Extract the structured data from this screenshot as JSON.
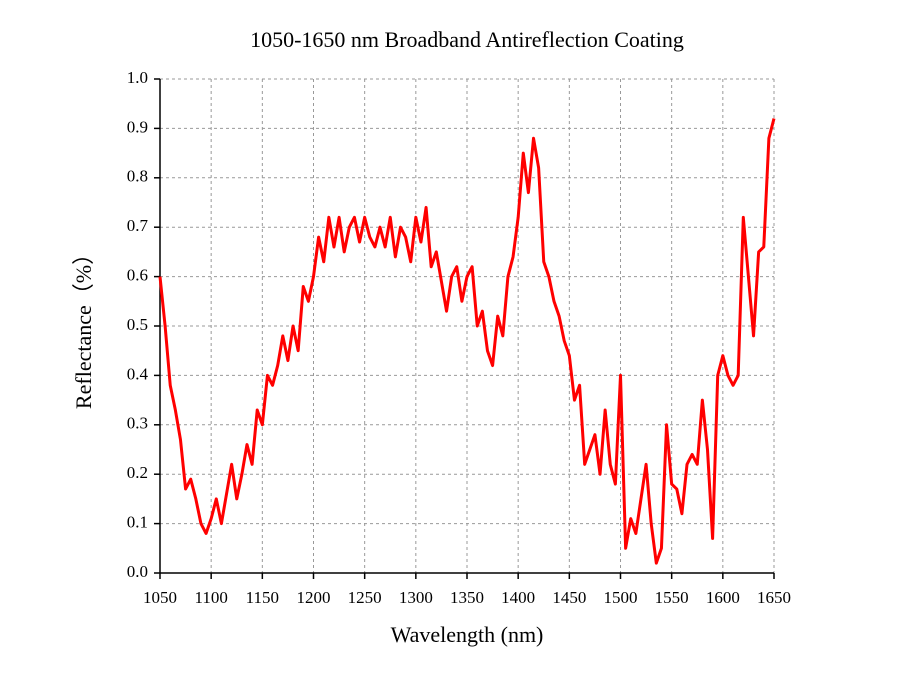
{
  "chart_data": {
    "type": "line",
    "title": "1050-1650 nm Broadband Antireflection Coating",
    "x_label": "Wavelength (nm)",
    "y_label": "Reflectance（%）",
    "xlim": [
      1050,
      1650
    ],
    "xticks": [
      1050,
      1100,
      1150,
      1200,
      1250,
      1300,
      1350,
      1400,
      1450,
      1500,
      1550,
      1600,
      1650
    ],
    "ylim": [
      0,
      1
    ],
    "yticks": [
      {
        "value": 0,
        "label": "0.0"
      },
      0.1,
      0.2,
      0.3,
      0.4,
      0.5,
      0.6,
      0.7,
      0.8,
      0.9,
      {
        "value": 1,
        "label": "1.0"
      }
    ],
    "grid": true,
    "x": [
      1050,
      1055,
      1060,
      1065,
      1070,
      1075,
      1080,
      1085,
      1090,
      1095,
      1100,
      1105,
      1110,
      1115,
      1120,
      1125,
      1130,
      1135,
      1140,
      1145,
      1150,
      1155,
      1160,
      1165,
      1170,
      1175,
      1180,
      1185,
      1190,
      1195,
      1200,
      1205,
      1210,
      1215,
      1220,
      1225,
      1230,
      1235,
      1240,
      1245,
      1250,
      1255,
      1260,
      1265,
      1270,
      1275,
      1280,
      1285,
      1290,
      1295,
      1300,
      1305,
      1310,
      1315,
      1320,
      1325,
      1330,
      1335,
      1340,
      1345,
      1350,
      1355,
      1360,
      1365,
      1370,
      1375,
      1380,
      1385,
      1390,
      1395,
      1400,
      1405,
      1410,
      1415,
      1420,
      1425,
      1430,
      1435,
      1440,
      1445,
      1450,
      1455,
      1460,
      1465,
      1470,
      1475,
      1480,
      1485,
      1490,
      1495,
      1500,
      1505,
      1510,
      1515,
      1520,
      1525,
      1530,
      1535,
      1540,
      1545,
      1550,
      1555,
      1560,
      1565,
      1570,
      1575,
      1580,
      1585,
      1590,
      1595,
      1600,
      1605,
      1610,
      1615,
      1620,
      1625,
      1630,
      1635,
      1640,
      1645,
      1650
    ],
    "series": [
      {
        "color": "#ff0000",
        "values": [
          0.6,
          0.5,
          0.38,
          0.33,
          0.27,
          0.17,
          0.19,
          0.15,
          0.1,
          0.08,
          0.11,
          0.15,
          0.1,
          0.16,
          0.22,
          0.15,
          0.2,
          0.26,
          0.22,
          0.33,
          0.3,
          0.4,
          0.38,
          0.42,
          0.48,
          0.43,
          0.5,
          0.45,
          0.58,
          0.55,
          0.6,
          0.68,
          0.63,
          0.72,
          0.66,
          0.72,
          0.65,
          0.7,
          0.72,
          0.67,
          0.72,
          0.68,
          0.66,
          0.7,
          0.66,
          0.72,
          0.64,
          0.7,
          0.68,
          0.63,
          0.72,
          0.67,
          0.74,
          0.62,
          0.65,
          0.59,
          0.53,
          0.6,
          0.62,
          0.55,
          0.6,
          0.62,
          0.5,
          0.53,
          0.45,
          0.42,
          0.52,
          0.48,
          0.6,
          0.64,
          0.72,
          0.85,
          0.77,
          0.88,
          0.82,
          0.63,
          0.6,
          0.55,
          0.52,
          0.47,
          0.44,
          0.35,
          0.38,
          0.22,
          0.25,
          0.28,
          0.2,
          0.33,
          0.22,
          0.18,
          0.4,
          0.05,
          0.11,
          0.08,
          0.15,
          0.22,
          0.1,
          0.02,
          0.05,
          0.3,
          0.18,
          0.17,
          0.12,
          0.22,
          0.24,
          0.22,
          0.35,
          0.25,
          0.07,
          0.4,
          0.44,
          0.4,
          0.38,
          0.4,
          0.72,
          0.6,
          0.48,
          0.65,
          0.66,
          0.88,
          0.92
        ]
      }
    ]
  }
}
